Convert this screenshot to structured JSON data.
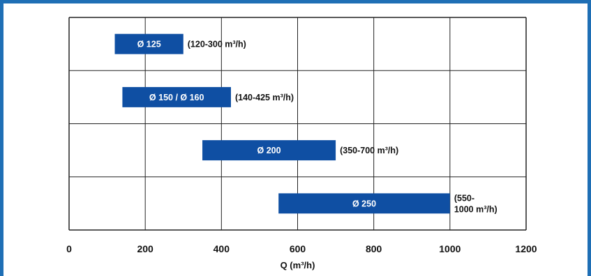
{
  "chart_data": {
    "type": "bar",
    "orientation": "horizontal",
    "xlabel": "Q (m³/h)",
    "xlim": [
      0,
      1200
    ],
    "x_ticks": [
      "0",
      "200",
      "400",
      "600",
      "800",
      "1000",
      "1200"
    ],
    "x_tick_values": [
      0,
      200,
      400,
      600,
      800,
      1000,
      1200
    ],
    "grid": true,
    "colors": {
      "bar": "#0f4fa3",
      "frame": "#1f6fb5",
      "grid": "#222222"
    },
    "bars": [
      {
        "label": "Ø 125",
        "start": 120,
        "end": 300,
        "range_lines": [
          "(120-300 m³/h)"
        ]
      },
      {
        "label": "Ø 150 / Ø 160",
        "start": 140,
        "end": 425,
        "range_lines": [
          "(140-425 m³/h)"
        ]
      },
      {
        "label": "Ø 200",
        "start": 350,
        "end": 700,
        "range_lines": [
          "(350-700 m³/h)"
        ]
      },
      {
        "label": "Ø 250",
        "start": 550,
        "end": 1000,
        "range_lines": [
          "(550-",
          "1000 m³/h)"
        ]
      }
    ]
  }
}
